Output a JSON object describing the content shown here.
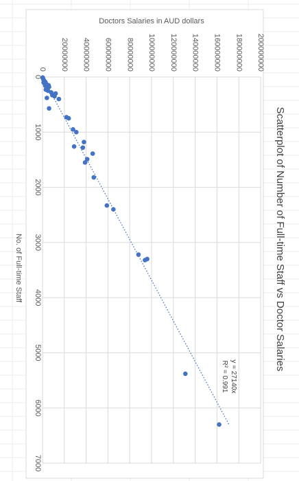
{
  "chart_data": {
    "type": "scatter",
    "title": "Scatterplot of Number of Full-time Staff vs Doctor Salaries",
    "xlabel": "No. of Full-time Staff",
    "ylabel": "Doctors Salaries in AUD dollars",
    "xlim": [
      0,
      7000
    ],
    "ylim": [
      0,
      200000000
    ],
    "x_ticks": [
      "0",
      "1000",
      "2000",
      "3000",
      "4000",
      "5000",
      "6000",
      "7000"
    ],
    "y_ticks": [
      "0",
      "20000000",
      "40000000",
      "60000000",
      "80000000",
      "100000000",
      "120000000",
      "140000000",
      "160000000",
      "180000000",
      "200000000"
    ],
    "grid": true,
    "orientation": "rotated 90 degrees clockwise",
    "trendline": {
      "type": "linear",
      "equation": "y = 27140x",
      "r_squared": "R² = 0.991",
      "slope": 27140,
      "style": "dotted",
      "x_range": [
        0,
        6300
      ]
    },
    "series": [
      {
        "color": "#4472C4",
        "points": [
          [
            10,
            200000
          ],
          [
            20,
            300000
          ],
          [
            30,
            500000
          ],
          [
            40,
            700000
          ],
          [
            50,
            1000000
          ],
          [
            60,
            1200000
          ],
          [
            70,
            1500000
          ],
          [
            80,
            2000000
          ],
          [
            90,
            2500000
          ],
          [
            100,
            1000000
          ],
          [
            110,
            3000000
          ],
          [
            120,
            1800000
          ],
          [
            140,
            4000000
          ],
          [
            150,
            5500000
          ],
          [
            160,
            2500000
          ],
          [
            180,
            6000000
          ],
          [
            200,
            4500000
          ],
          [
            230,
            3000000
          ],
          [
            250,
            5000000
          ],
          [
            280,
            8000000
          ],
          [
            300,
            12000000
          ],
          [
            330,
            9000000
          ],
          [
            350,
            11000000
          ],
          [
            380,
            4000000
          ],
          [
            400,
            15000000
          ],
          [
            570,
            6000000
          ],
          [
            730,
            22000000
          ],
          [
            750,
            24000000
          ],
          [
            950,
            28000000
          ],
          [
            1000,
            31000000
          ],
          [
            1180,
            38000000
          ],
          [
            1260,
            29000000
          ],
          [
            1280,
            37000000
          ],
          [
            1390,
            46000000
          ],
          [
            1490,
            41000000
          ],
          [
            1550,
            39000000
          ],
          [
            1820,
            47000000
          ],
          [
            2330,
            59000000
          ],
          [
            2400,
            65000000
          ],
          [
            3220,
            88000000
          ],
          [
            3320,
            94000000
          ],
          [
            3300,
            96000000
          ],
          [
            5380,
            131000000
          ],
          [
            6300,
            162000000
          ]
        ]
      }
    ]
  }
}
